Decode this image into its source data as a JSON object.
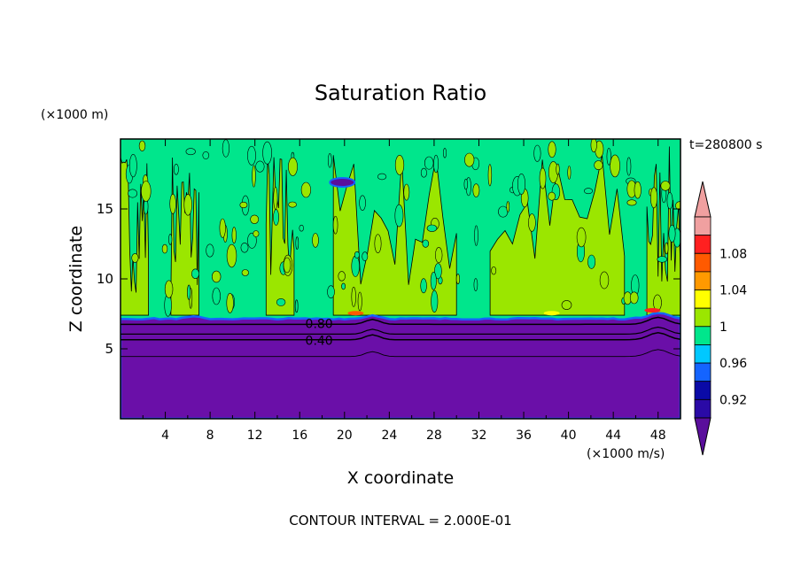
{
  "chart_data": {
    "type": "heatmap",
    "title": "Saturation Ratio",
    "time_label": "t=280800 s",
    "xlabel": "X coordinate",
    "ylabel": "Z coordinate",
    "x_unit": "(×1000 m/s)",
    "y_unit": "(×1000 m)",
    "footer": "CONTOUR INTERVAL = 2.000E-01",
    "xlim": [
      0,
      50
    ],
    "ylim": [
      0,
      20
    ],
    "x_ticks": [
      4,
      8,
      12,
      16,
      20,
      24,
      28,
      32,
      36,
      40,
      44,
      48
    ],
    "y_ticks": [
      5,
      10,
      15
    ],
    "contour_labels": [
      {
        "text": "0.80",
        "x": 16.5,
        "y": 6.8
      },
      {
        "text": "0.40",
        "x": 16.5,
        "y": 5.6
      }
    ],
    "colorbar": {
      "colors": [
        "#5a0e9c",
        "#2a0aa6",
        "#0a0aa6",
        "#1464ff",
        "#00c8ff",
        "#00e68c",
        "#9be600",
        "#ffff00",
        "#ff9900",
        "#ff5a00",
        "#ff2020",
        "#f0a0a0",
        "#5a0e9c"
      ],
      "labels": [
        "0.92",
        "0.96",
        "1",
        "1.04",
        "1.08"
      ]
    },
    "fields": {
      "dry_layer_color": "#6a0fa8",
      "saturated_color": "#00e68c",
      "supersaturated_color": "#9be600"
    }
  }
}
